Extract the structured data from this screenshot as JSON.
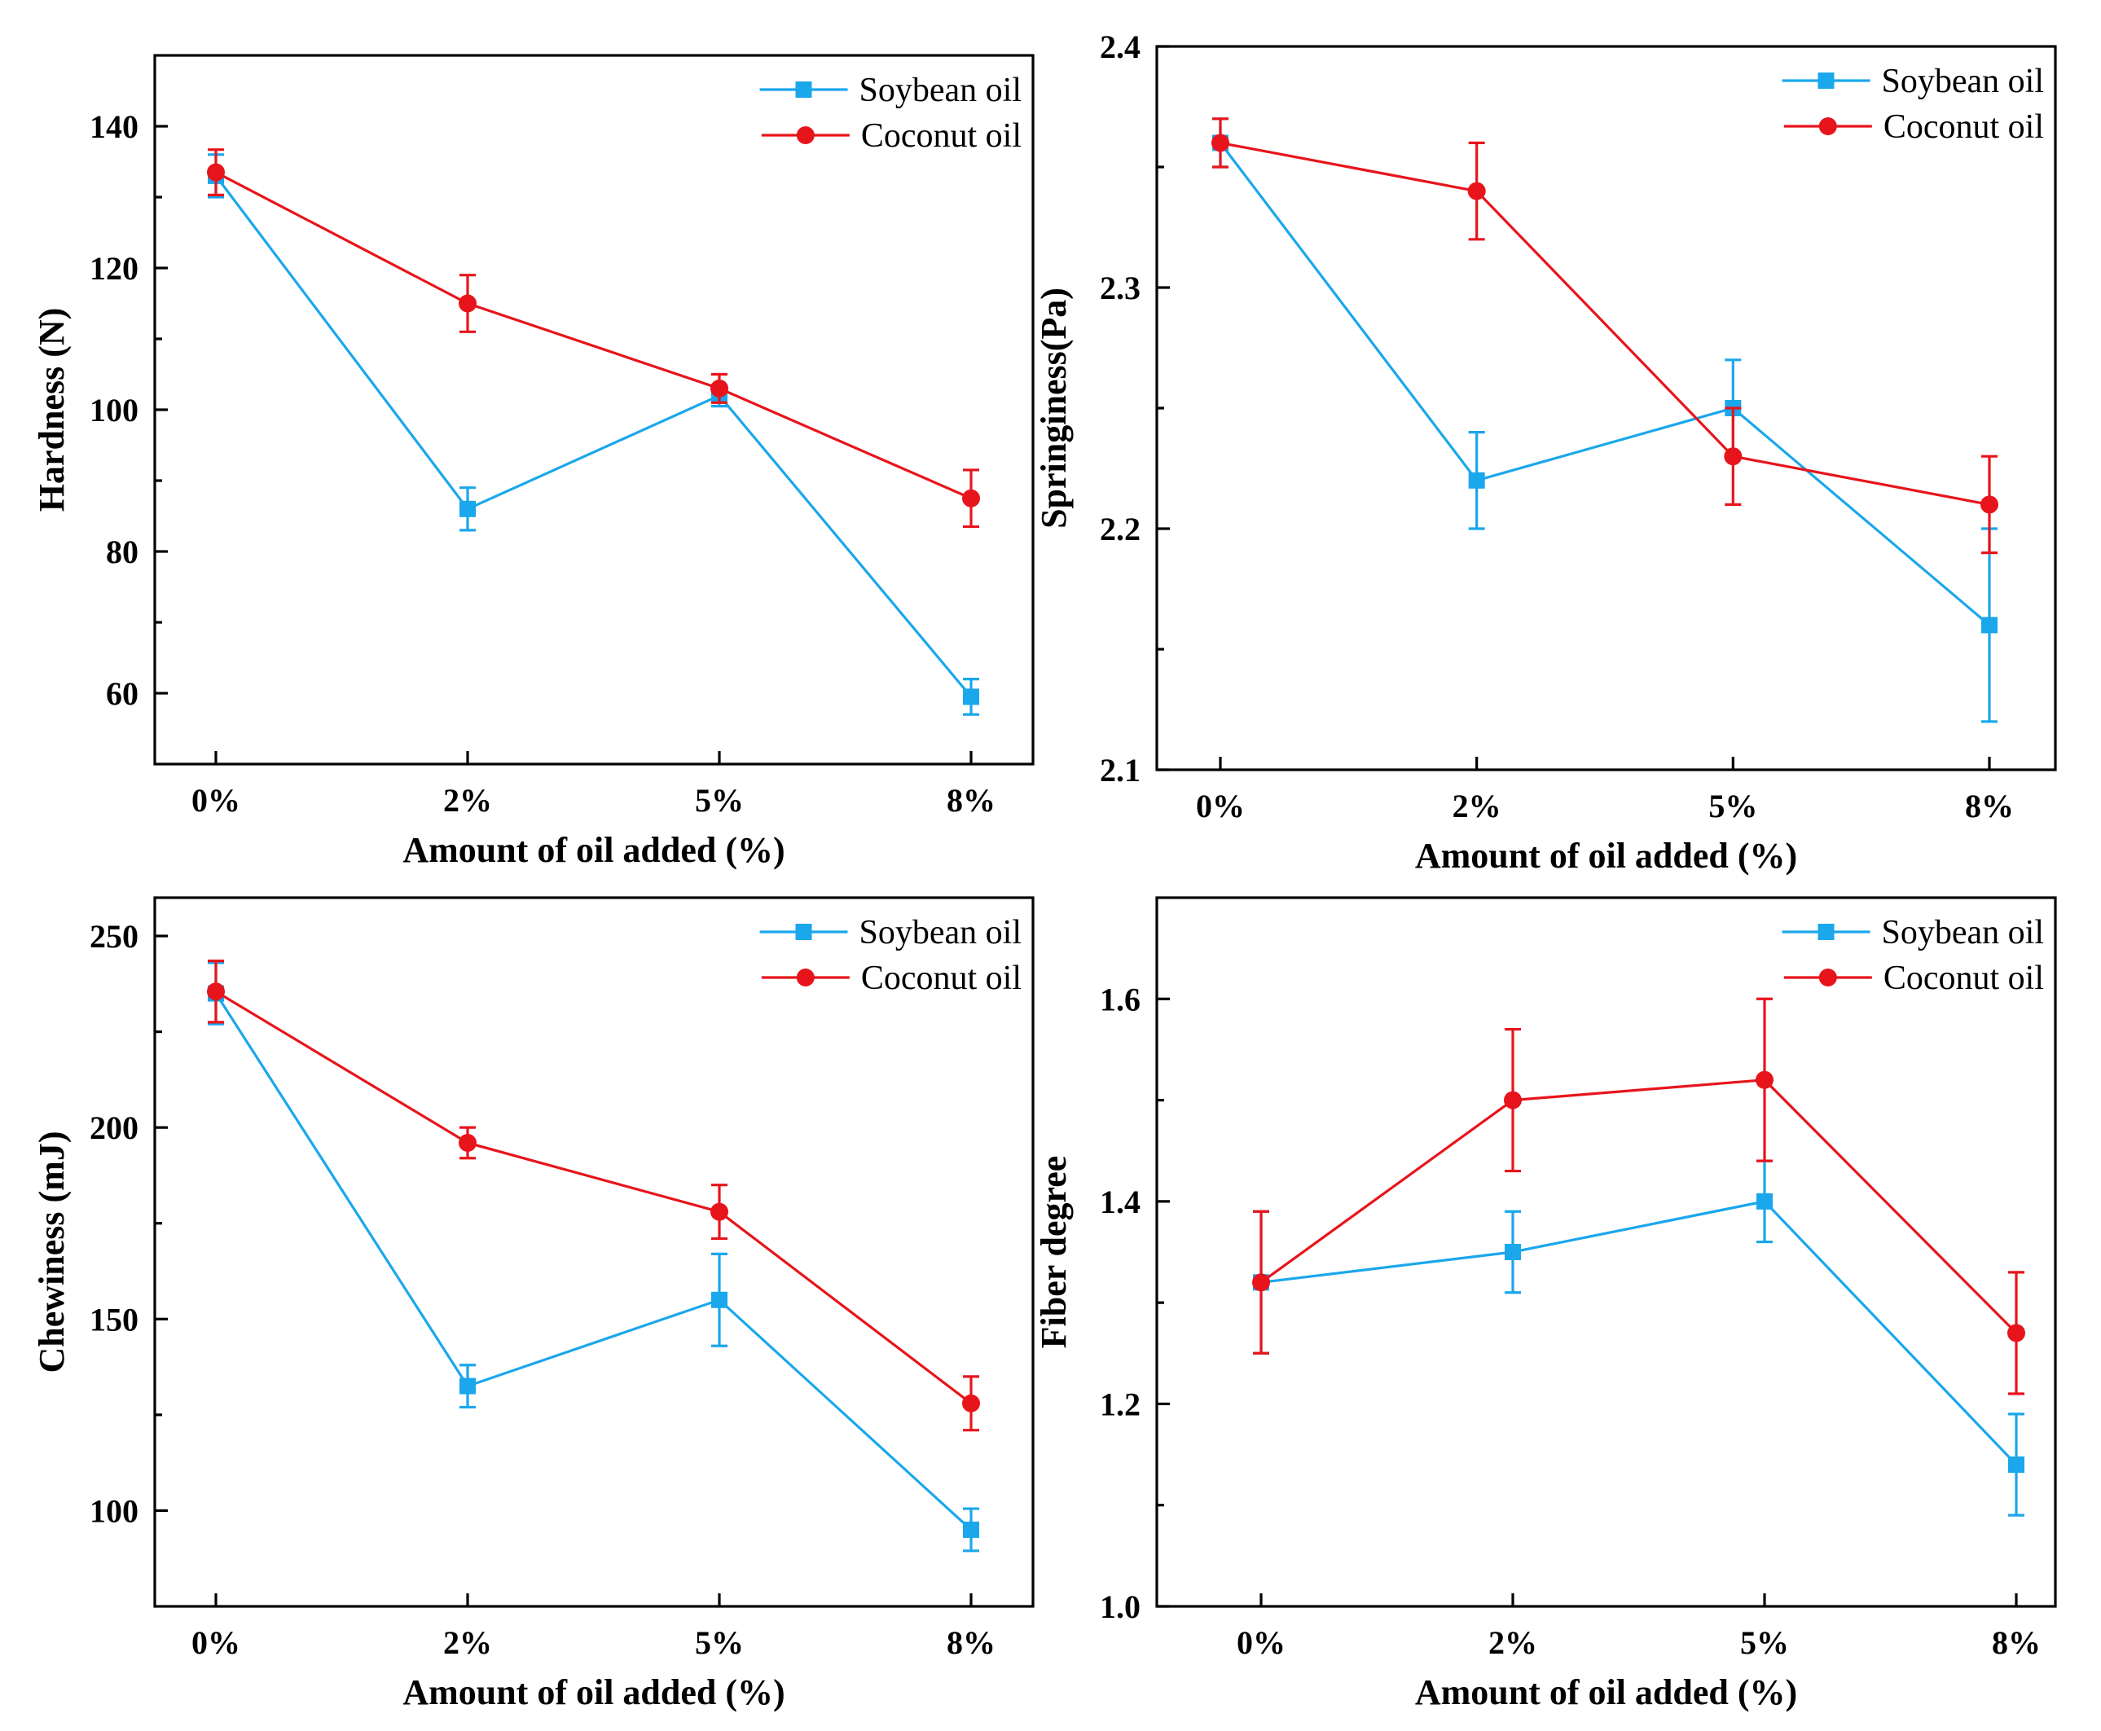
{
  "colors": {
    "soybean": "#1aa7ec",
    "coconut": "#e8141b"
  },
  "chart_data": [
    {
      "type": "line",
      "categories": [
        "0%",
        "2%",
        "5%",
        "8%"
      ],
      "xlabel": "Amount of oil added (%)",
      "ylabel": "Hardness (N)",
      "ylim": [
        50,
        150
      ],
      "yticks": [
        60,
        80,
        100,
        120,
        140
      ],
      "ytick_labels": [
        "60",
        "80",
        "100",
        "120",
        "140"
      ],
      "legend_position": "top-right",
      "series": [
        {
          "name": "Soybean oil",
          "marker": "square",
          "values": [
            133,
            86,
            102,
            59.5
          ],
          "errors": [
            3,
            3,
            1.5,
            2.5
          ]
        },
        {
          "name": "Coconut oil",
          "marker": "circle",
          "values": [
            133.5,
            115,
            103,
            87.5
          ],
          "errors": [
            3.2,
            4,
            2,
            4
          ]
        }
      ]
    },
    {
      "type": "line",
      "categories": [
        "0%",
        "2%",
        "5%",
        "8%"
      ],
      "xlabel": "Amount of oil added (%)",
      "ylabel": "Springiness(Pa)",
      "ylim": [
        2.1,
        2.4
      ],
      "yticks": [
        2.1,
        2.2,
        2.3,
        2.4
      ],
      "ytick_labels": [
        "2.1",
        "2.2",
        "2.3",
        "2.4"
      ],
      "legend_position": "top-right",
      "series": [
        {
          "name": "Soybean oil",
          "marker": "square",
          "values": [
            2.36,
            2.22,
            2.25,
            2.16
          ],
          "errors": [
            0.01,
            0.02,
            0.02,
            0.04
          ]
        },
        {
          "name": "Coconut oil",
          "marker": "circle",
          "values": [
            2.36,
            2.34,
            2.23,
            2.21
          ],
          "errors": [
            0.01,
            0.02,
            0.02,
            0.02
          ]
        }
      ]
    },
    {
      "type": "line",
      "categories": [
        "0%",
        "2%",
        "5%",
        "8%"
      ],
      "xlabel": "Amount of oil added (%)",
      "ylabel": "Chewiness (mJ)",
      "ylim": [
        75,
        260
      ],
      "yticks": [
        100,
        150,
        200,
        250
      ],
      "ytick_labels": [
        "100",
        "150",
        "200",
        "250"
      ],
      "legend_position": "top-right",
      "series": [
        {
          "name": "Soybean oil",
          "marker": "square",
          "values": [
            235,
            132.5,
            155,
            95
          ],
          "errors": [
            8,
            5.5,
            12,
            5.5
          ]
        },
        {
          "name": "Coconut oil",
          "marker": "circle",
          "values": [
            235.5,
            196,
            178,
            128
          ],
          "errors": [
            8,
            4,
            7,
            7
          ]
        }
      ]
    },
    {
      "type": "line",
      "categories": [
        "0%",
        "2%",
        "5%",
        "8%"
      ],
      "xlabel": "Amount of oil added (%)",
      "ylabel": "Fiber degree",
      "ylim": [
        1.0,
        1.7
      ],
      "yticks": [
        1.0,
        1.2,
        1.4,
        1.6
      ],
      "ytick_labels": [
        "1.0",
        "1.2",
        "1.4",
        "1.6"
      ],
      "legend_position": "top-right",
      "series": [
        {
          "name": "Soybean oil",
          "marker": "square",
          "values": [
            1.32,
            1.35,
            1.4,
            1.14
          ],
          "errors": [
            0.07,
            0.04,
            0.04,
            0.05
          ]
        },
        {
          "name": "Coconut oil",
          "marker": "circle",
          "values": [
            1.32,
            1.5,
            1.52,
            1.27
          ],
          "errors": [
            0.07,
            0.07,
            0.08,
            0.06
          ]
        }
      ]
    }
  ]
}
